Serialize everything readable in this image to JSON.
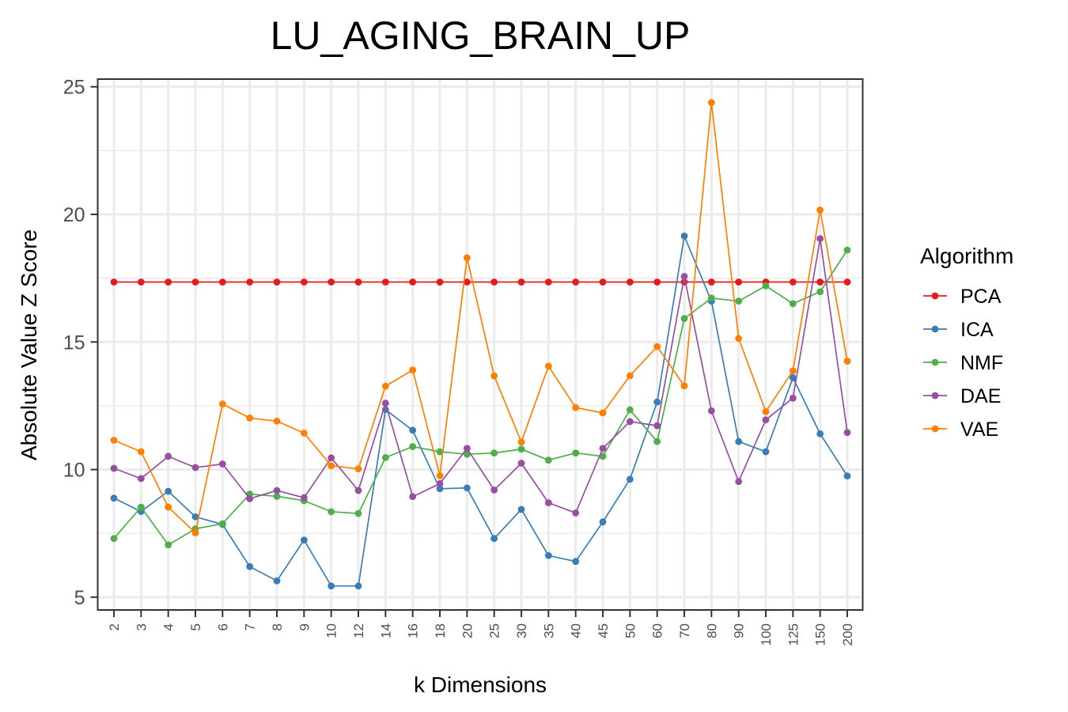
{
  "chart_data": {
    "type": "line",
    "title": "LU_AGING_BRAIN_UP",
    "xlabel": "k Dimensions",
    "ylabel": "Absolute Value Z Score",
    "x": [
      "2",
      "3",
      "4",
      "5",
      "6",
      "7",
      "8",
      "9",
      "10",
      "12",
      "14",
      "16",
      "18",
      "20",
      "25",
      "30",
      "35",
      "40",
      "45",
      "50",
      "60",
      "70",
      "80",
      "90",
      "100",
      "125",
      "150",
      "200"
    ],
    "ylim": [
      4.5,
      25.3
    ],
    "yticks": [
      5,
      10,
      15,
      20,
      25
    ],
    "ytick_labels": [
      "5",
      "10",
      "15",
      "20",
      "25"
    ],
    "grid": true,
    "legend": {
      "title": "Algorithm",
      "position": "right"
    },
    "series": [
      {
        "name": "PCA",
        "color": "#e41a1c",
        "values": [
          17.35,
          17.35,
          17.35,
          17.35,
          17.35,
          17.35,
          17.35,
          17.35,
          17.35,
          17.35,
          17.35,
          17.35,
          17.35,
          17.35,
          17.35,
          17.35,
          17.35,
          17.35,
          17.35,
          17.35,
          17.35,
          17.35,
          17.35,
          17.35,
          17.35,
          17.35,
          17.35,
          17.35
        ]
      },
      {
        "name": "ICA",
        "color": "#377eb8",
        "values": [
          8.88,
          8.36,
          9.15,
          8.15,
          7.85,
          6.2,
          5.64,
          7.24,
          5.44,
          5.44,
          12.35,
          11.54,
          9.25,
          9.28,
          7.3,
          8.44,
          6.63,
          6.4,
          7.95,
          9.62,
          12.65,
          19.15,
          16.6,
          11.1,
          10.7,
          13.6,
          11.4,
          9.75
        ]
      },
      {
        "name": "NMF",
        "color": "#4daf4a",
        "values": [
          7.3,
          8.53,
          7.05,
          7.68,
          7.88,
          9.04,
          8.95,
          8.78,
          8.35,
          8.28,
          10.47,
          10.9,
          10.7,
          10.6,
          10.65,
          10.8,
          10.37,
          10.65,
          10.52,
          12.34,
          11.1,
          15.92,
          16.72,
          16.6,
          17.2,
          16.5,
          16.97,
          18.6
        ]
      },
      {
        "name": "DAE",
        "color": "#984ea3",
        "values": [
          10.05,
          9.65,
          10.52,
          10.08,
          10.22,
          8.86,
          9.18,
          8.9,
          10.46,
          9.18,
          12.6,
          8.94,
          9.45,
          10.83,
          9.2,
          10.25,
          8.7,
          8.3,
          10.83,
          11.88,
          11.72,
          17.57,
          12.3,
          9.53,
          11.95,
          12.8,
          19.05,
          11.45
        ]
      },
      {
        "name": "VAE",
        "color": "#ff7f00",
        "values": [
          11.15,
          10.7,
          8.53,
          7.52,
          12.57,
          12.02,
          11.9,
          11.43,
          10.15,
          10.03,
          13.27,
          13.9,
          9.76,
          18.3,
          13.67,
          11.08,
          14.05,
          12.43,
          12.22,
          13.68,
          14.82,
          13.28,
          24.38,
          15.14,
          12.27,
          13.87,
          20.17,
          14.25
        ]
      }
    ]
  }
}
